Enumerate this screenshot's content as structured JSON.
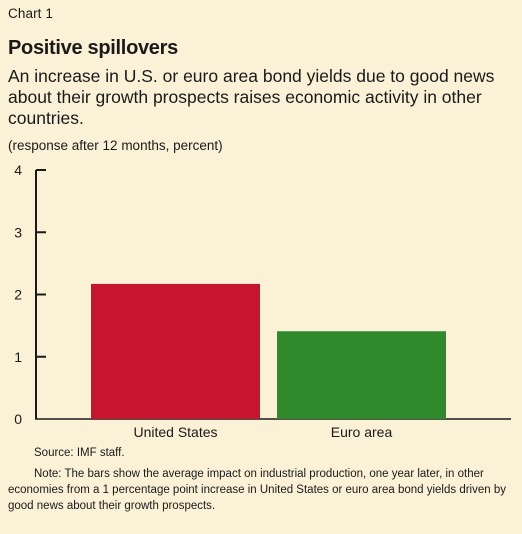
{
  "header": {
    "chart_label": "Chart 1",
    "title": "Positive spillovers",
    "subtitle": "An increase in U.S. or euro area bond yields due to good news about their growth prospects raises economic activity in other countries.",
    "units": "(response after 12 months, percent)"
  },
  "footer": {
    "source": "Source: IMF staff.",
    "note": "Note: The bars show the average impact on industrial production, one year later, in other economies from a 1 percentage point increase in United States or euro area bond yields driven by good news about their growth prospects."
  },
  "colors": {
    "background": "#fbf1d6",
    "axis": "#1a1a1a",
    "bars": [
      "#c8152e",
      "#2f8a2c"
    ]
  },
  "chart_data": {
    "type": "bar",
    "categories": [
      "United States",
      "Euro area"
    ],
    "values": [
      2.17,
      1.41
    ],
    "ylim": [
      0,
      4
    ],
    "yticks": [
      0,
      1,
      2,
      3,
      4
    ],
    "grid": false,
    "legend": "none"
  }
}
